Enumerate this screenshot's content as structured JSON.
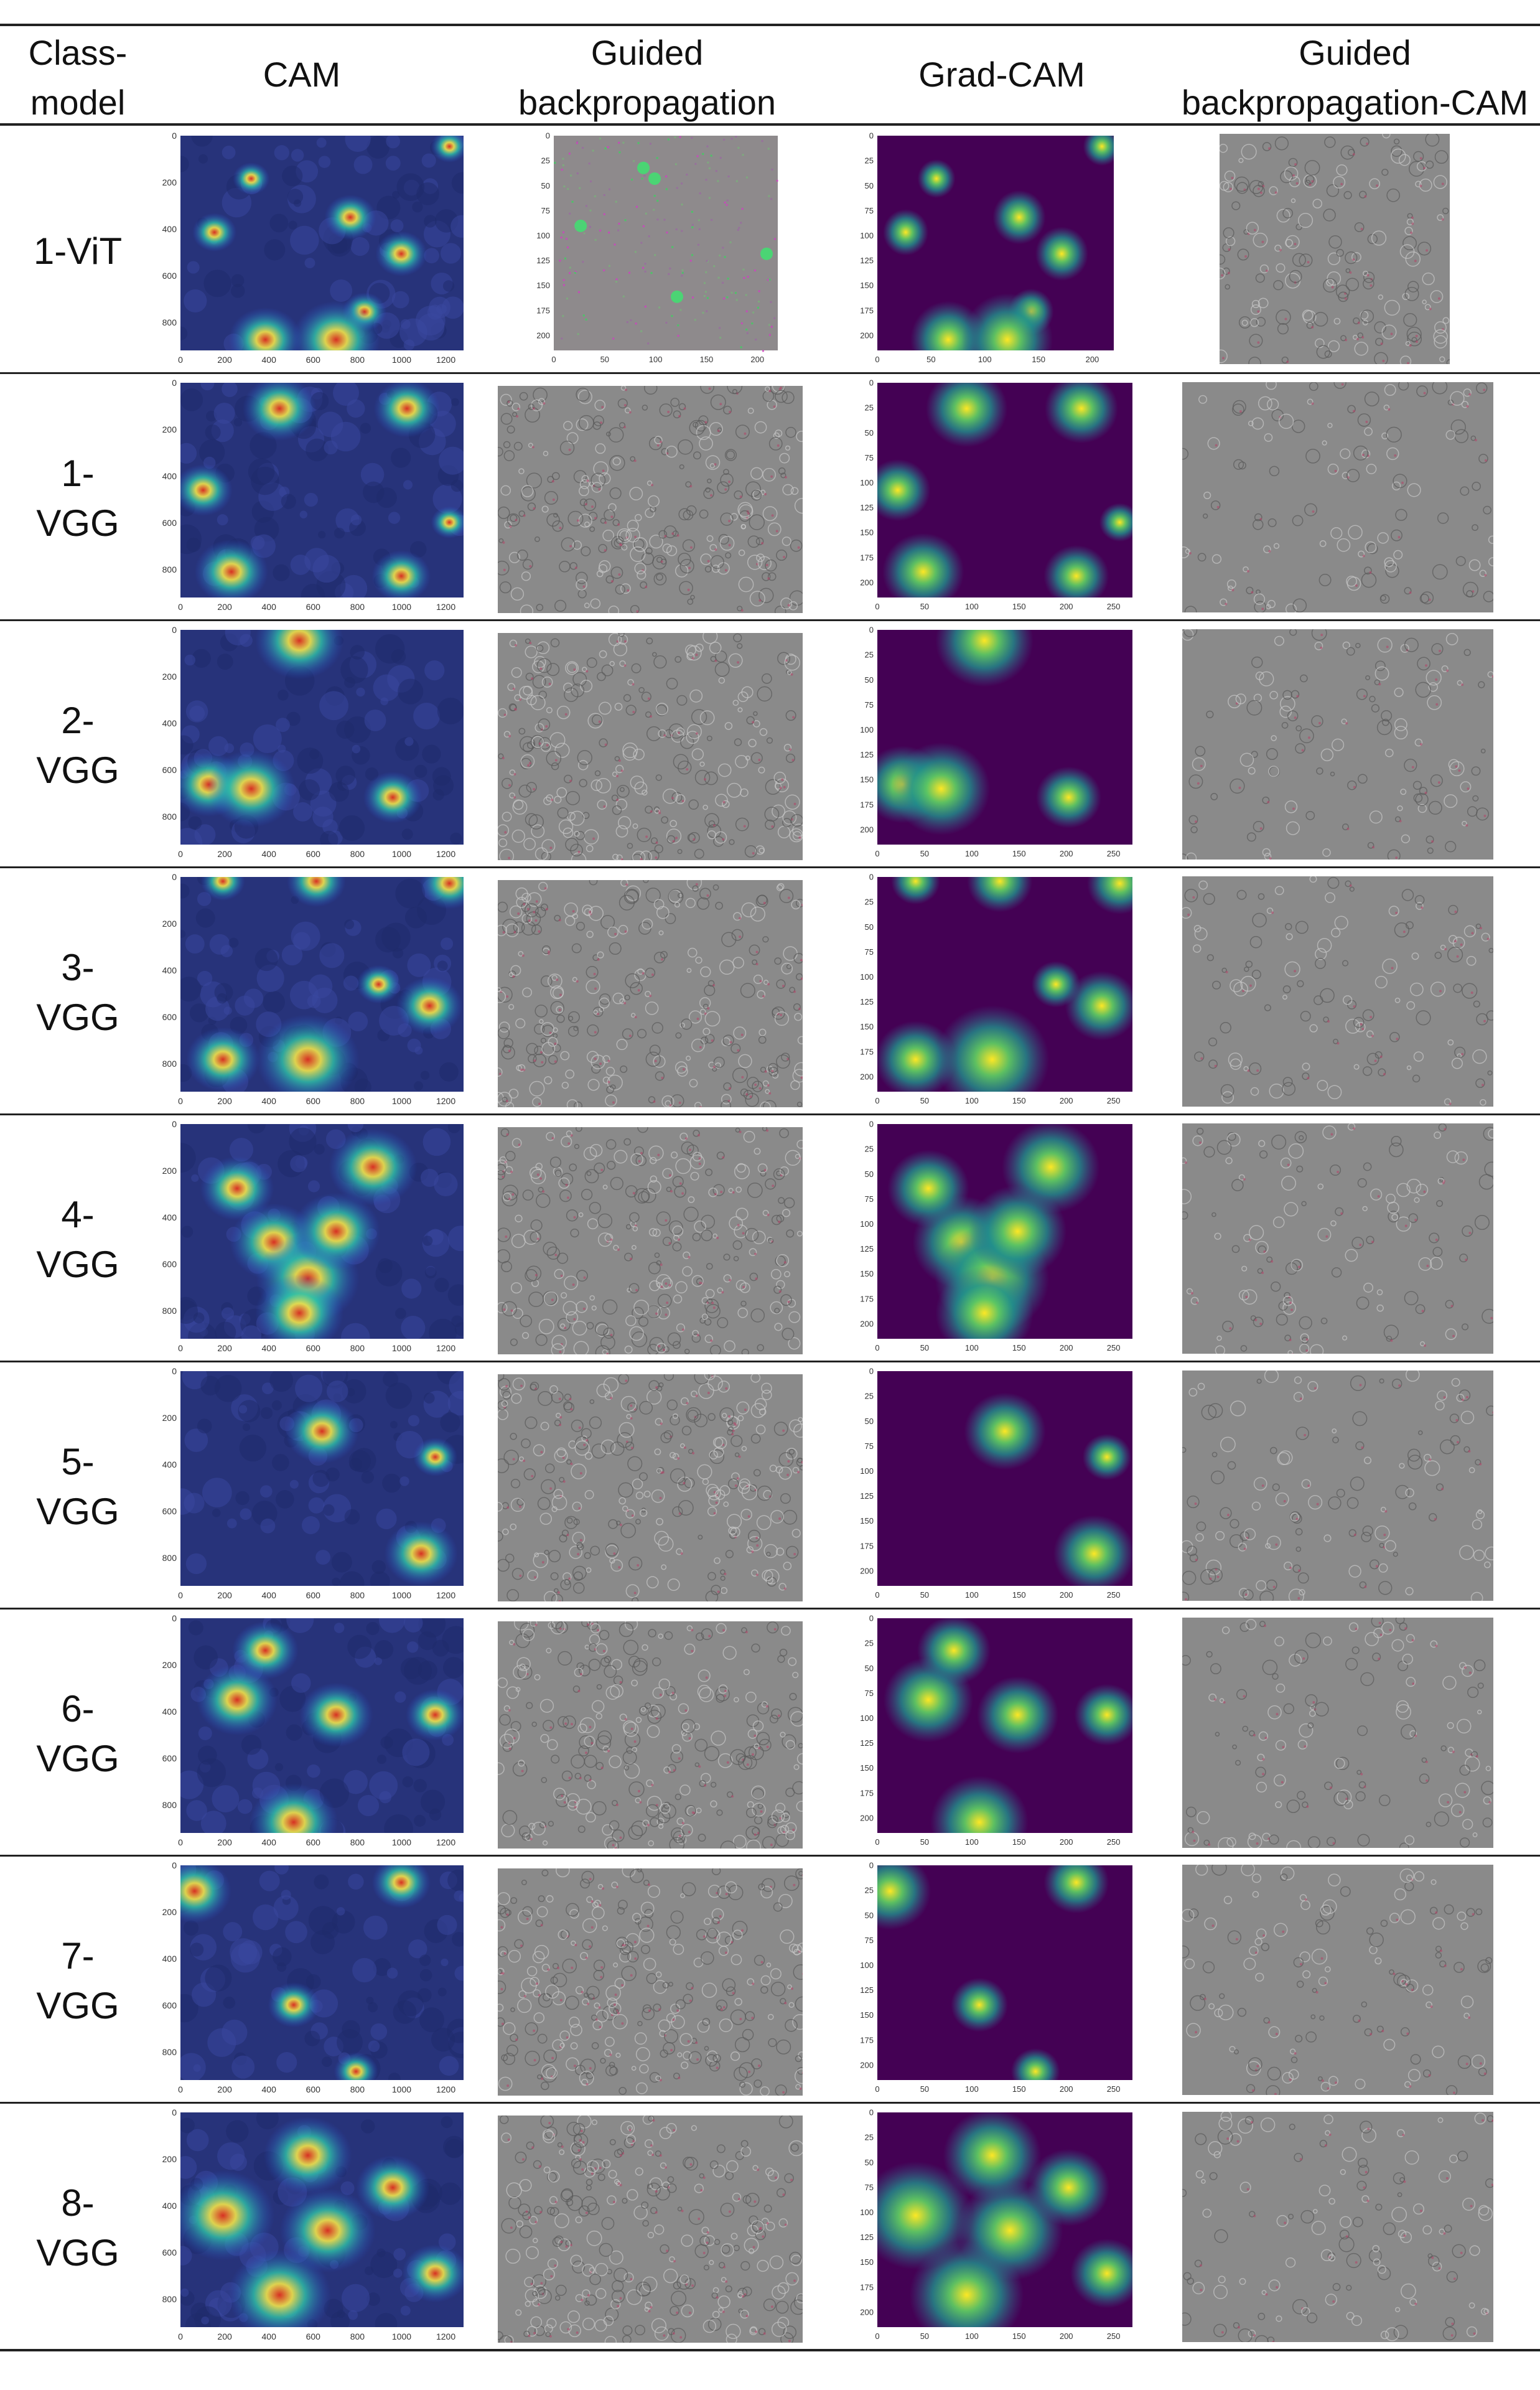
{
  "table": {
    "headers": {
      "class_model": [
        "Class-",
        "model"
      ],
      "cam": "CAM",
      "guided_bp": [
        "Guided",
        "backpropagation"
      ],
      "gradcam": "Grad-CAM",
      "guided_bp_cam": [
        "Guided",
        "backpropagation-CAM"
      ]
    },
    "rows": [
      {
        "label": [
          "1-ViT"
        ],
        "kind": "vit"
      },
      {
        "label": [
          "1-",
          "VGG"
        ],
        "kind": "vgg"
      },
      {
        "label": [
          "2-",
          "VGG"
        ],
        "kind": "vgg"
      },
      {
        "label": [
          "3-",
          "VGG"
        ],
        "kind": "vgg"
      },
      {
        "label": [
          "4-",
          "VGG"
        ],
        "kind": "vgg"
      },
      {
        "label": [
          "5-",
          "VGG"
        ],
        "kind": "vgg"
      },
      {
        "label": [
          "6-",
          "VGG"
        ],
        "kind": "vgg"
      },
      {
        "label": [
          "7-",
          "VGG"
        ],
        "kind": "vgg"
      },
      {
        "label": [
          "8-",
          "VGG"
        ],
        "kind": "vgg"
      }
    ],
    "axis_ticks": {
      "cam_x": [
        "0",
        "200",
        "400",
        "600",
        "800",
        "1000",
        "1200"
      ],
      "cam_y": [
        "0",
        "200",
        "400",
        "600",
        "800"
      ],
      "vit_x": [
        "0",
        "50",
        "100",
        "150",
        "200"
      ],
      "vit_y": [
        "0",
        "25",
        "50",
        "75",
        "100",
        "125",
        "150",
        "175",
        "200"
      ],
      "grad_x": [
        "0",
        "50",
        "100",
        "150",
        "200",
        "250"
      ],
      "grad_y": [
        "0",
        "25",
        "50",
        "75",
        "100",
        "125",
        "150",
        "175",
        "200"
      ]
    },
    "colors": {
      "cam_base": "#27337a",
      "grad_base": "#440154",
      "grad_mid": "#21918c",
      "grad_hot": "#fde725",
      "gray_panel": "#8a8a8a"
    }
  }
}
